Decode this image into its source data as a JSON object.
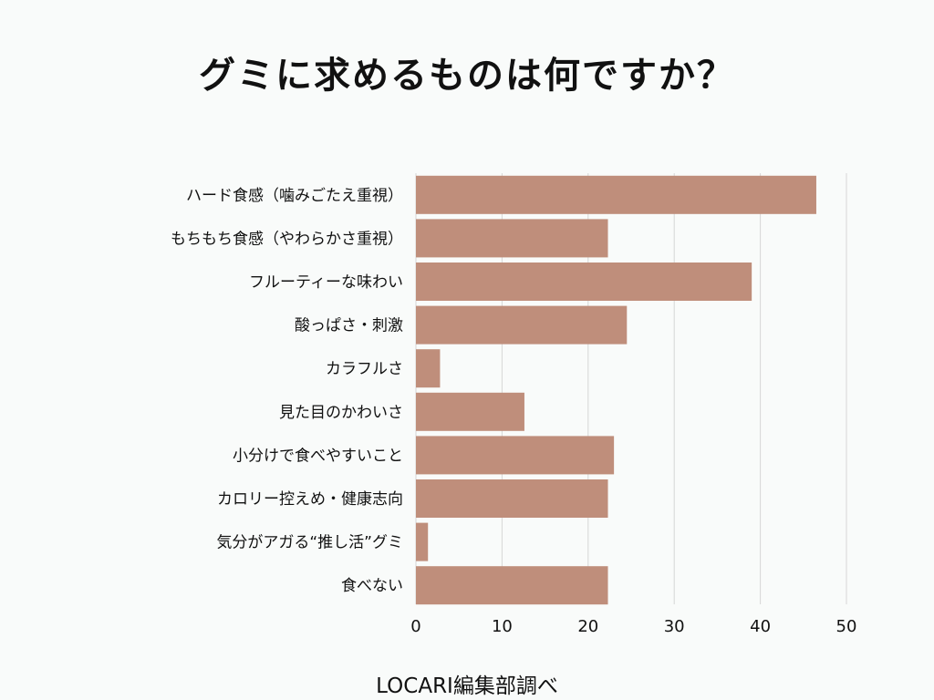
{
  "chart_data": {
    "type": "bar",
    "orientation": "horizontal",
    "title": "グミに求めるものは何ですか？",
    "categories": [
      "ハード食感（噛みごたえ重視）",
      "もちもち食感（やわらかさ重視）",
      "フルーティーな味わい",
      "酸っぱさ・刺激",
      "カラフルさ",
      "見た目のかわいさ",
      "小分けで食べやすいこと",
      "カロリー控えめ・健康志向",
      "気分がアガる“推し活”グミ",
      "食べない"
    ],
    "values": [
      46.5,
      22.3,
      39,
      24.5,
      2.8,
      12.6,
      23,
      22.3,
      1.4,
      22.3
    ],
    "xlim": [
      0,
      50
    ],
    "xticks": [
      "0",
      "10",
      "20",
      "30",
      "40",
      "50"
    ],
    "xlabel": "",
    "ylabel": "",
    "grid": true,
    "legend": "none",
    "bar_color": "#bf8e7b",
    "grid_color": "#d6d6d6"
  },
  "source": "LOCARI編集部調べ"
}
